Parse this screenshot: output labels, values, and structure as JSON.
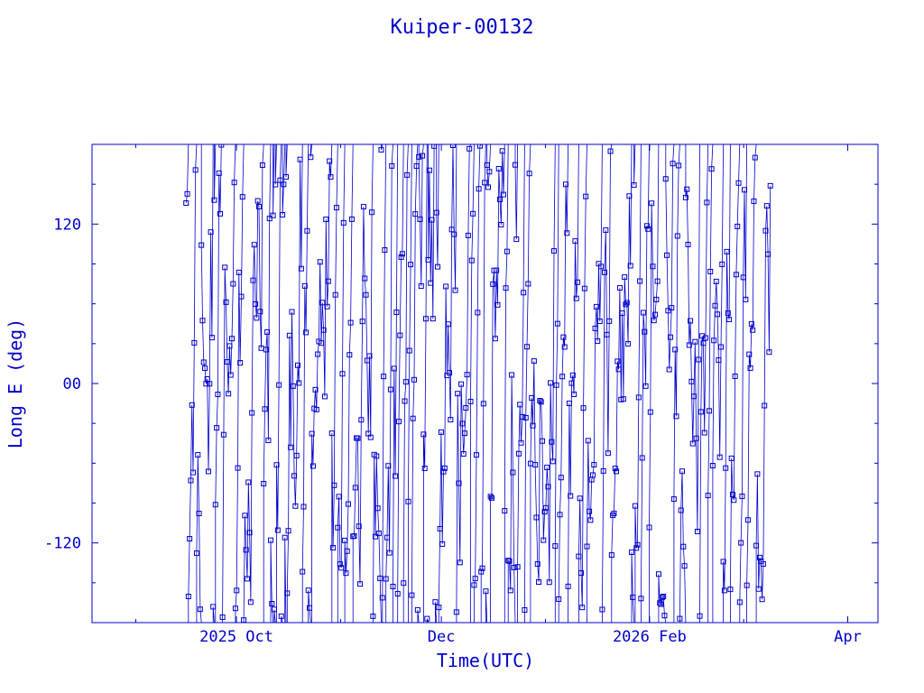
{
  "chart_data": {
    "type": "scatter",
    "title": "Kuiper-00132",
    "xlabel": "Time(UTC)",
    "ylabel": "Long E (deg)",
    "x_tick_labels": [
      "2025 Oct",
      "Dec",
      "2026 Feb",
      "Apr"
    ],
    "x_tick_dates": [
      "2025-10-01",
      "2025-12-01",
      "2026-02-01",
      "2026-04-01"
    ],
    "xlim": [
      "2025-08-19",
      "2026-04-10"
    ],
    "y_tick_labels": [
      "-120",
      "00",
      "120"
    ],
    "y_tick_values": [
      -120,
      0,
      120
    ],
    "ylim": [
      -180,
      180
    ],
    "data_range": [
      "2025-09-16",
      "2026-03-09"
    ],
    "series": [
      {
        "style": "line+square-markers",
        "color": "#0000cc"
      }
    ],
    "grid": false,
    "legend": "none"
  }
}
